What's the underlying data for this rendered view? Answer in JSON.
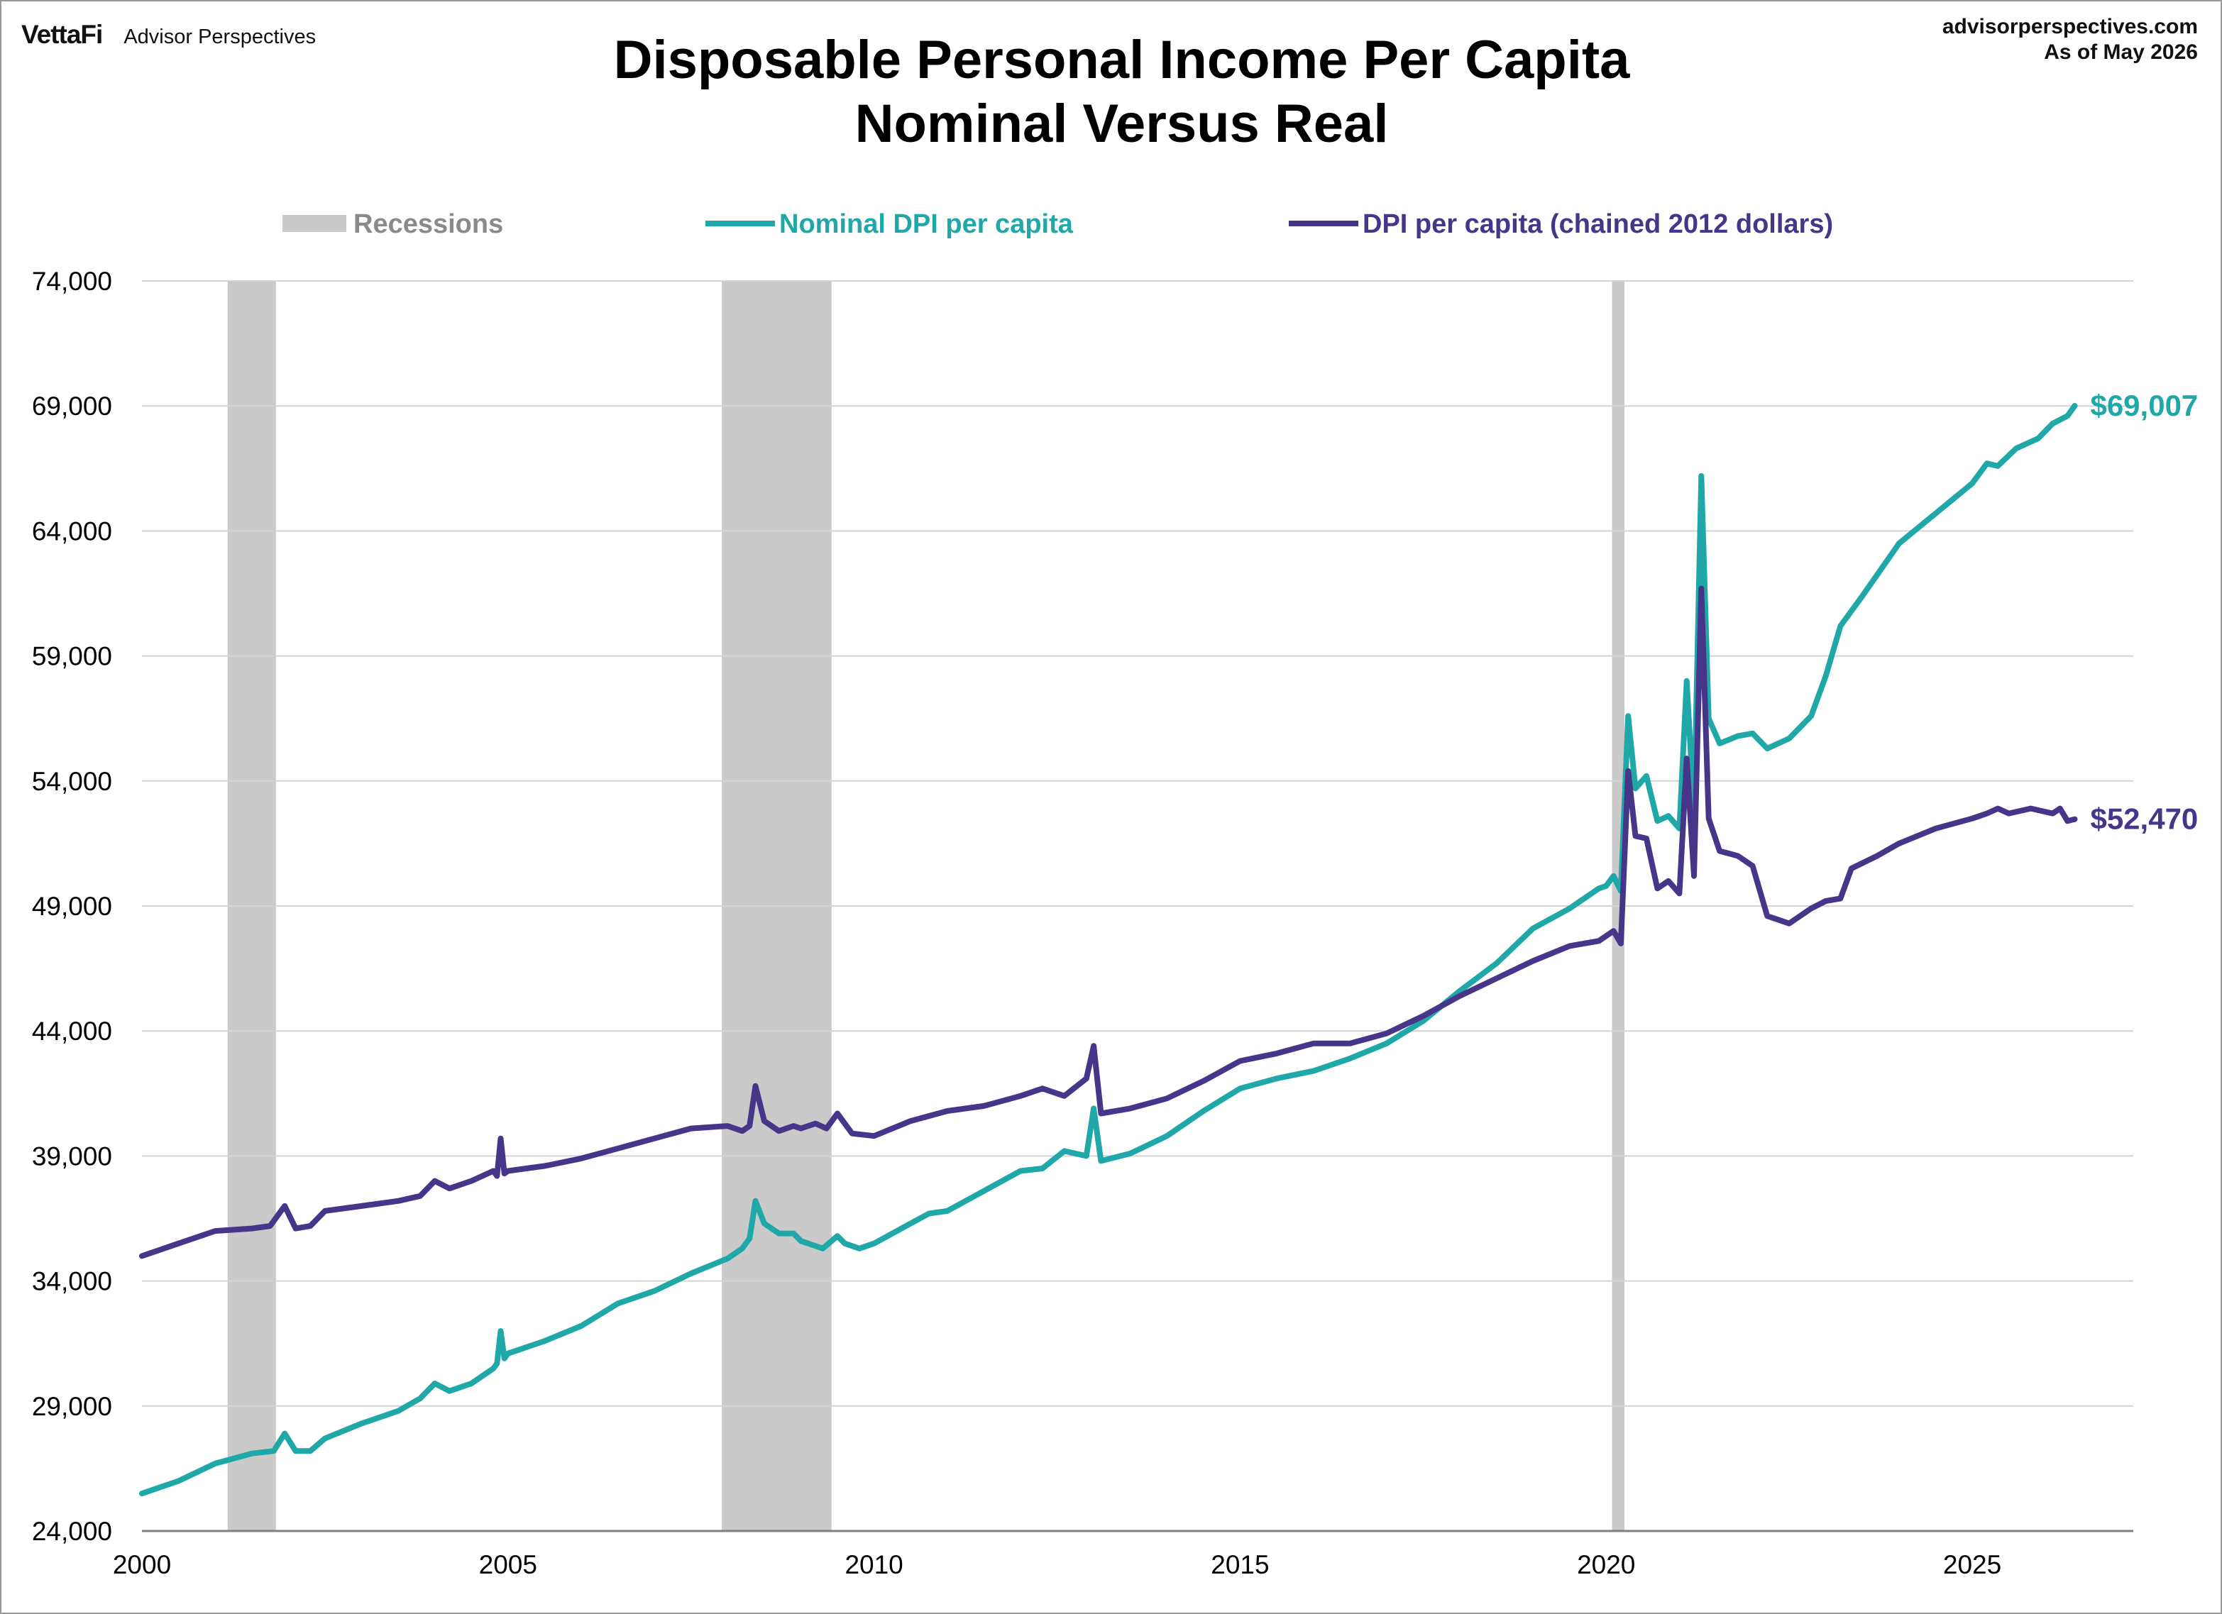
{
  "header": {
    "brand_logo": "VettaFi",
    "brand_sub": "Advisor Perspectives",
    "source_site": "advisorperspectives.com",
    "source_date": "As of May 2026",
    "title_line1": "Disposable Personal Income Per Capita",
    "title_line2": "Nominal Versus Real"
  },
  "colors": {
    "nominal": "#20a8a8",
    "real": "#47358a",
    "recession": "#cacaca",
    "grid": "#d4d4d4",
    "axis": "#7f7f7f"
  },
  "chart_data": {
    "type": "line",
    "title": "Disposable Personal Income Per Capita\nNominal Versus Real",
    "xlim": [
      2000,
      2027.2
    ],
    "ylim": [
      24000,
      74000
    ],
    "x_ticks": [
      2000,
      2005,
      2010,
      2015,
      2020,
      2025
    ],
    "x_tick_labels": [
      "2000",
      "2005",
      "2010",
      "2015",
      "2020",
      "2025"
    ],
    "y_ticks": [
      24000,
      29000,
      34000,
      39000,
      44000,
      49000,
      54000,
      59000,
      64000,
      69000,
      74000
    ],
    "y_tick_labels": [
      "24,000",
      "29,000",
      "34,000",
      "39,000",
      "44,000",
      "49,000",
      "54,000",
      "59,000",
      "64,000",
      "69,000",
      "74,000"
    ],
    "grid": "horizontal",
    "legend_position": "top",
    "legend": [
      {
        "label": "Recessions",
        "kind": "band"
      },
      {
        "label": "Nominal DPI per capita",
        "kind": "line"
      },
      {
        "label": "DPI per capita (chained 2012 dollars)",
        "kind": "line"
      }
    ],
    "recessions": [
      [
        2001.17,
        2001.83
      ],
      [
        2007.92,
        2009.42
      ],
      [
        2020.08,
        2020.25
      ]
    ],
    "series": [
      {
        "name": "Nominal DPI per capita",
        "end_label": "$69,007",
        "points": [
          [
            2000.0,
            25500
          ],
          [
            2000.5,
            26000
          ],
          [
            2001.0,
            26700
          ],
          [
            2001.5,
            27100
          ],
          [
            2001.8,
            27200
          ],
          [
            2001.95,
            27900
          ],
          [
            2002.1,
            27200
          ],
          [
            2002.3,
            27200
          ],
          [
            2002.5,
            27700
          ],
          [
            2003.0,
            28300
          ],
          [
            2003.5,
            28800
          ],
          [
            2003.8,
            29300
          ],
          [
            2004.0,
            29900
          ],
          [
            2004.2,
            29600
          ],
          [
            2004.5,
            29900
          ],
          [
            2004.8,
            30500
          ],
          [
            2004.85,
            30700
          ],
          [
            2004.9,
            32000
          ],
          [
            2004.95,
            30900
          ],
          [
            2005.0,
            31100
          ],
          [
            2005.5,
            31600
          ],
          [
            2006.0,
            32200
          ],
          [
            2006.5,
            33100
          ],
          [
            2007.0,
            33600
          ],
          [
            2007.5,
            34300
          ],
          [
            2008.0,
            34900
          ],
          [
            2008.2,
            35300
          ],
          [
            2008.3,
            35700
          ],
          [
            2008.38,
            37200
          ],
          [
            2008.5,
            36300
          ],
          [
            2008.7,
            35900
          ],
          [
            2008.9,
            35900
          ],
          [
            2009.0,
            35600
          ],
          [
            2009.3,
            35300
          ],
          [
            2009.5,
            35800
          ],
          [
            2009.6,
            35500
          ],
          [
            2009.8,
            35300
          ],
          [
            2010.0,
            35500
          ],
          [
            2010.5,
            36300
          ],
          [
            2010.75,
            36700
          ],
          [
            2011.0,
            36800
          ],
          [
            2011.5,
            37600
          ],
          [
            2012.0,
            38400
          ],
          [
            2012.3,
            38500
          ],
          [
            2012.6,
            39200
          ],
          [
            2012.9,
            39000
          ],
          [
            2013.0,
            40900
          ],
          [
            2013.1,
            38800
          ],
          [
            2013.5,
            39100
          ],
          [
            2014.0,
            39800
          ],
          [
            2014.5,
            40800
          ],
          [
            2015.0,
            41700
          ],
          [
            2015.5,
            42100
          ],
          [
            2016.0,
            42400
          ],
          [
            2016.5,
            42900
          ],
          [
            2017.0,
            43500
          ],
          [
            2017.5,
            44400
          ],
          [
            2018.0,
            45600
          ],
          [
            2018.5,
            46700
          ],
          [
            2019.0,
            48100
          ],
          [
            2019.5,
            48900
          ],
          [
            2019.9,
            49700
          ],
          [
            2020.0,
            49800
          ],
          [
            2020.1,
            50200
          ],
          [
            2020.2,
            49600
          ],
          [
            2020.3,
            56600
          ],
          [
            2020.4,
            53700
          ],
          [
            2020.55,
            54200
          ],
          [
            2020.7,
            52400
          ],
          [
            2020.85,
            52600
          ],
          [
            2021.0,
            52100
          ],
          [
            2021.1,
            58000
          ],
          [
            2021.2,
            52800
          ],
          [
            2021.3,
            66200
          ],
          [
            2021.4,
            56500
          ],
          [
            2021.55,
            55500
          ],
          [
            2021.8,
            55800
          ],
          [
            2022.0,
            55900
          ],
          [
            2022.2,
            55300
          ],
          [
            2022.5,
            55700
          ],
          [
            2022.8,
            56600
          ],
          [
            2023.0,
            58200
          ],
          [
            2023.2,
            60200
          ],
          [
            2023.5,
            61400
          ],
          [
            2024.0,
            63500
          ],
          [
            2024.5,
            64700
          ],
          [
            2025.0,
            65900
          ],
          [
            2025.2,
            66700
          ],
          [
            2025.35,
            66600
          ],
          [
            2025.6,
            67300
          ],
          [
            2025.9,
            67700
          ],
          [
            2026.1,
            68300
          ],
          [
            2026.3,
            68600
          ],
          [
            2026.4,
            69007
          ]
        ]
      },
      {
        "name": "DPI per capita (chained 2012 dollars)",
        "end_label": "$52,470",
        "points": [
          [
            2000.0,
            35000
          ],
          [
            2000.5,
            35500
          ],
          [
            2001.0,
            36000
          ],
          [
            2001.5,
            36100
          ],
          [
            2001.75,
            36200
          ],
          [
            2001.95,
            37000
          ],
          [
            2002.1,
            36100
          ],
          [
            2002.3,
            36200
          ],
          [
            2002.5,
            36800
          ],
          [
            2003.0,
            37000
          ],
          [
            2003.5,
            37200
          ],
          [
            2003.8,
            37400
          ],
          [
            2004.0,
            38000
          ],
          [
            2004.2,
            37700
          ],
          [
            2004.5,
            38000
          ],
          [
            2004.8,
            38400
          ],
          [
            2004.85,
            38200
          ],
          [
            2004.9,
            39700
          ],
          [
            2004.95,
            38300
          ],
          [
            2005.0,
            38400
          ],
          [
            2005.5,
            38600
          ],
          [
            2006.0,
            38900
          ],
          [
            2006.5,
            39300
          ],
          [
            2007.0,
            39700
          ],
          [
            2007.5,
            40100
          ],
          [
            2008.0,
            40200
          ],
          [
            2008.2,
            40000
          ],
          [
            2008.3,
            40200
          ],
          [
            2008.38,
            41800
          ],
          [
            2008.5,
            40400
          ],
          [
            2008.7,
            40000
          ],
          [
            2008.9,
            40200
          ],
          [
            2009.0,
            40100
          ],
          [
            2009.2,
            40300
          ],
          [
            2009.35,
            40100
          ],
          [
            2009.5,
            40700
          ],
          [
            2009.7,
            39900
          ],
          [
            2010.0,
            39800
          ],
          [
            2010.5,
            40400
          ],
          [
            2011.0,
            40800
          ],
          [
            2011.5,
            41000
          ],
          [
            2012.0,
            41400
          ],
          [
            2012.3,
            41700
          ],
          [
            2012.6,
            41400
          ],
          [
            2012.9,
            42100
          ],
          [
            2013.0,
            43400
          ],
          [
            2013.1,
            40700
          ],
          [
            2013.5,
            40900
          ],
          [
            2014.0,
            41300
          ],
          [
            2014.5,
            42000
          ],
          [
            2015.0,
            42800
          ],
          [
            2015.5,
            43100
          ],
          [
            2016.0,
            43500
          ],
          [
            2016.5,
            43500
          ],
          [
            2017.0,
            43900
          ],
          [
            2017.5,
            44600
          ],
          [
            2018.0,
            45400
          ],
          [
            2018.5,
            46100
          ],
          [
            2019.0,
            46800
          ],
          [
            2019.5,
            47400
          ],
          [
            2019.9,
            47600
          ],
          [
            2020.0,
            47800
          ],
          [
            2020.1,
            48000
          ],
          [
            2020.2,
            47500
          ],
          [
            2020.3,
            54400
          ],
          [
            2020.4,
            51800
          ],
          [
            2020.55,
            51700
          ],
          [
            2020.7,
            49700
          ],
          [
            2020.85,
            50000
          ],
          [
            2021.0,
            49500
          ],
          [
            2021.1,
            54900
          ],
          [
            2021.2,
            50200
          ],
          [
            2021.3,
            61700
          ],
          [
            2021.4,
            52500
          ],
          [
            2021.55,
            51200
          ],
          [
            2021.8,
            51000
          ],
          [
            2022.0,
            50600
          ],
          [
            2022.2,
            48600
          ],
          [
            2022.5,
            48300
          ],
          [
            2022.8,
            48900
          ],
          [
            2023.0,
            49200
          ],
          [
            2023.2,
            49300
          ],
          [
            2023.35,
            50500
          ],
          [
            2023.7,
            51000
          ],
          [
            2024.0,
            51500
          ],
          [
            2024.5,
            52100
          ],
          [
            2025.0,
            52500
          ],
          [
            2025.2,
            52700
          ],
          [
            2025.35,
            52900
          ],
          [
            2025.5,
            52700
          ],
          [
            2025.8,
            52900
          ],
          [
            2026.1,
            52700
          ],
          [
            2026.2,
            52900
          ],
          [
            2026.3,
            52400
          ],
          [
            2026.4,
            52470
          ]
        ]
      }
    ]
  }
}
